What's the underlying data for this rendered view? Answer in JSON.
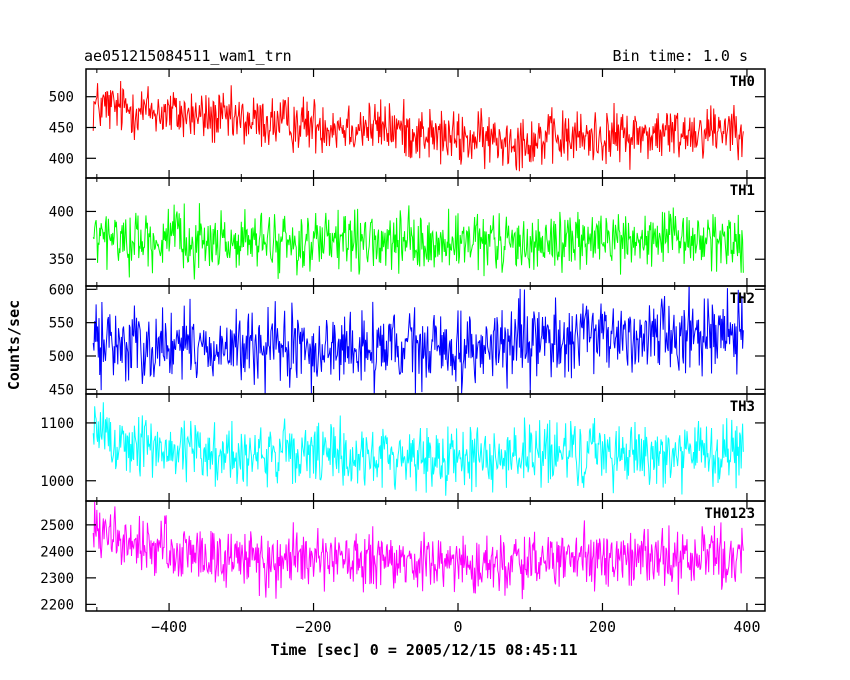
{
  "chart_data": {
    "type": "line",
    "title": "ae051215084511_wam1_trn",
    "bin_time_label": "Bin time: 1.0 s",
    "xlabel": "Time [sec] 0 = 2005/12/15 08:45:11",
    "ylabel": "Counts/sec",
    "xlim": [
      -515,
      425
    ],
    "x_ticks": [
      -400,
      -200,
      0,
      200,
      400
    ],
    "x_tick_labels": [
      "−400",
      "−200",
      "0",
      "200",
      "400"
    ],
    "x_range": [
      -505,
      395
    ],
    "panels": [
      {
        "name": "TH0",
        "color": "#ff0000",
        "ylim": [
          368,
          545
        ],
        "y_ticks": [
          400,
          450,
          500
        ],
        "y_tick_labels": [
          "400",
          "450",
          "500"
        ],
        "trend": [
          [
            -505,
            485
          ],
          [
            -450,
            480
          ],
          [
            -300,
            460
          ],
          [
            -200,
            455
          ],
          [
            -100,
            450
          ],
          [
            0,
            430
          ],
          [
            100,
            430
          ],
          [
            200,
            435
          ],
          [
            300,
            440
          ],
          [
            395,
            455
          ]
        ],
        "noise": 22
      },
      {
        "name": "TH1",
        "color": "#00ff00",
        "ylim": [
          322,
          435
        ],
        "y_ticks": [
          350,
          400
        ],
        "y_tick_labels": [
          "350",
          "400"
        ],
        "trend": [
          [
            -505,
            372
          ],
          [
            -300,
            368
          ],
          [
            0,
            365
          ],
          [
            200,
            370
          ],
          [
            395,
            370
          ]
        ],
        "noise": 15
      },
      {
        "name": "TH2",
        "color": "#0000ff",
        "ylim": [
          443,
          605
        ],
        "y_ticks": [
          450,
          500,
          550,
          600
        ],
        "y_tick_labels": [
          "450",
          "500",
          "550",
          "600"
        ],
        "trend": [
          [
            -505,
            520
          ],
          [
            -300,
            510
          ],
          [
            0,
            510
          ],
          [
            200,
            530
          ],
          [
            395,
            540
          ]
        ],
        "noise": 28
      },
      {
        "name": "TH3",
        "color": "#00ffff",
        "ylim": [
          965,
          1150
        ],
        "y_ticks": [
          1000,
          1100
        ],
        "y_tick_labels": [
          "1000",
          "1100"
        ],
        "trend": [
          [
            -505,
            1085
          ],
          [
            -450,
            1060
          ],
          [
            -300,
            1045
          ],
          [
            0,
            1040
          ],
          [
            200,
            1050
          ],
          [
            395,
            1045
          ]
        ],
        "noise": 28
      },
      {
        "name": "TH0123",
        "color": "#ff00ff",
        "ylim": [
          2175,
          2590
        ],
        "y_ticks": [
          2200,
          2300,
          2400,
          2500
        ],
        "y_tick_labels": [
          "2200",
          "2300",
          "2400",
          "2500"
        ],
        "trend": [
          [
            -505,
            2480
          ],
          [
            -450,
            2420
          ],
          [
            -300,
            2370
          ],
          [
            0,
            2350
          ],
          [
            200,
            2370
          ],
          [
            395,
            2380
          ]
        ],
        "noise": 55
      }
    ]
  }
}
